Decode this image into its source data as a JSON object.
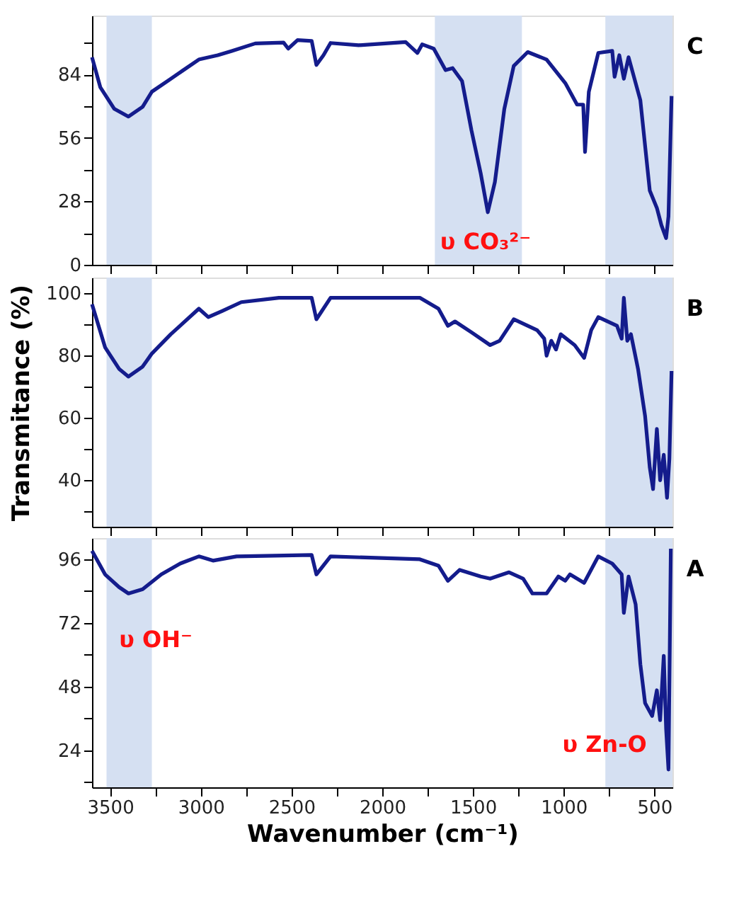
{
  "chart_data": [
    {
      "type": "line",
      "color": "#141c8c",
      "line_style": "solid",
      "marker": "none",
      "grid": false,
      "tick_labels": "y",
      "x": [
        3600,
        3554,
        3477,
        3399,
        3321,
        3270,
        3166,
        3011,
        2907,
        2829,
        2700,
        2544,
        2518,
        2467,
        2389,
        2363,
        2324,
        2285,
        2130,
        1871,
        1806,
        1780,
        1716,
        1651,
        1612,
        1560,
        1508,
        1457,
        1418,
        1379,
        1327,
        1275,
        1198,
        1094,
        991,
        926,
        892,
        882,
        861,
        809,
        732,
        719,
        693,
        668,
        642,
        577,
        525,
        486,
        461,
        435,
        422,
        405
      ],
      "values": [
        91.6,
        78.3,
        68.8,
        65.4,
        69.7,
        76.4,
        82.1,
        90.6,
        92.5,
        94.4,
        97.7,
        98.1,
        95.4,
        99.2,
        98.8,
        88.2,
        92.5,
        97.9,
        96.9,
        98.3,
        93.5,
        97.3,
        95.4,
        85.9,
        86.8,
        81.1,
        59.3,
        40.3,
        23.2,
        36.5,
        68.8,
        87.8,
        93.9,
        90.6,
        80.2,
        70.7,
        70.7,
        49.8,
        76.4,
        93.5,
        94.4,
        83.0,
        92.5,
        82.1,
        91.6,
        72.6,
        32.7,
        25.1,
        17.5,
        11.8,
        21.3,
        74.5
      ],
      "xlim": [
        3600,
        400
      ],
      "ylim": [
        0,
        110
      ],
      "xticks": [
        3500,
        {
          "value": 3250,
          "label": null
        },
        3000,
        {
          "value": 2750,
          "label": null
        },
        2500,
        {
          "value": 2250,
          "label": null
        },
        2000,
        {
          "value": 1750,
          "label": null
        },
        1500,
        {
          "value": 1250,
          "label": null
        },
        1000,
        {
          "value": 750,
          "label": null
        },
        500
      ],
      "yticks": [
        0,
        {
          "value": 14,
          "label": null
        },
        28,
        {
          "value": 42,
          "label": null
        },
        56,
        {
          "value": 70,
          "label": null
        },
        84,
        {
          "value": 98,
          "label": null
        }
      ],
      "bands": [
        {
          "axis": "x",
          "from": 3520,
          "to": 3270,
          "color": "#d5e0f2"
        },
        {
          "axis": "x",
          "from": 1710,
          "to": 1230,
          "color": "#d5e0f2"
        },
        {
          "axis": "x",
          "from": 770,
          "to": 400,
          "color": "#d5e0f2"
        }
      ],
      "annotations": [
        "υ CO₃²⁻",
        "C"
      ]
    },
    {
      "type": "line",
      "annotations": [
        "B"
      ],
      "ylabel": "Transmitance (%)",
      "color": "#141c8c",
      "line_style": "solid",
      "marker": "none",
      "grid": false,
      "tick_labels": "y",
      "x": [
        3600,
        3528,
        3451,
        3399,
        3321,
        3270,
        3166,
        3011,
        2959,
        2881,
        2777,
        2570,
        2389,
        2363,
        2285,
        1793,
        1690,
        1638,
        1599,
        1508,
        1405,
        1353,
        1275,
        1146,
        1107,
        1094,
        1068,
        1042,
        1016,
        939,
        887,
        848,
        809,
        706,
        680,
        668,
        649,
        629,
        590,
        551,
        525,
        507,
        486,
        468,
        448,
        430,
        417,
        405
      ],
      "values": [
        96.4,
        82.6,
        75.7,
        73.2,
        76.4,
        80.6,
        86.8,
        95.0,
        92.3,
        94.3,
        97.1,
        98.5,
        98.5,
        91.6,
        98.5,
        98.5,
        95.0,
        89.5,
        90.9,
        87.4,
        83.3,
        84.7,
        91.6,
        88.1,
        85.4,
        79.9,
        84.7,
        81.9,
        86.8,
        83.3,
        79.2,
        88.1,
        92.3,
        89.5,
        85.4,
        98.5,
        84.7,
        86.8,
        75.7,
        60.6,
        44.0,
        37.1,
        56.4,
        39.9,
        48.1,
        34.3,
        46.8,
        75.0
      ],
      "xlim": [
        3600,
        400
      ],
      "ylim": [
        25,
        105
      ],
      "xticks": [
        3500,
        {
          "value": 3250,
          "label": null
        },
        3000,
        {
          "value": 2750,
          "label": null
        },
        2500,
        {
          "value": 2250,
          "label": null
        },
        2000,
        {
          "value": 1750,
          "label": null
        },
        1500,
        {
          "value": 1250,
          "label": null
        },
        1000,
        {
          "value": 750,
          "label": null
        },
        500
      ],
      "yticks": [
        {
          "value": 30,
          "label": null
        },
        40,
        {
          "value": 50,
          "label": null
        },
        60,
        {
          "value": 70,
          "label": null
        },
        80,
        {
          "value": 90,
          "label": null
        },
        100
      ],
      "bands": [
        {
          "axis": "x",
          "from": 3520,
          "to": 3270,
          "color": "#d5e0f2"
        },
        {
          "axis": "x",
          "from": 770,
          "to": 400,
          "color": "#d5e0f2"
        }
      ]
    },
    {
      "type": "line",
      "xlabel": "Wavenumber (cm⁻¹)",
      "color": "#141c8c",
      "line_style": "solid",
      "marker": "none",
      "grid": false,
      "x": [
        3600,
        3528,
        3451,
        3399,
        3321,
        3218,
        3114,
        3011,
        2933,
        2803,
        2389,
        2363,
        2285,
        1793,
        1690,
        1638,
        1573,
        1457,
        1405,
        1301,
        1223,
        1172,
        1094,
        1029,
        991,
        965,
        887,
        809,
        732,
        680,
        668,
        642,
        603,
        577,
        551,
        512,
        486,
        468,
        448,
        435,
        422,
        409
      ],
      "values": [
        99.2,
        90.3,
        85.5,
        83.1,
        84.7,
        90.3,
        94.4,
        97.1,
        95.5,
        97.1,
        97.6,
        90.3,
        97.1,
        96.0,
        93.6,
        87.9,
        92.0,
        89.5,
        88.7,
        91.1,
        88.7,
        83.1,
        83.1,
        89.5,
        87.9,
        90.3,
        87.1,
        97.1,
        94.4,
        90.3,
        75.8,
        89.5,
        79.0,
        56.4,
        41.8,
        36.9,
        46.6,
        35.3,
        59.6,
        32.1,
        16.7,
        100.0
      ],
      "xlim": [
        3600,
        400
      ],
      "ylim": [
        10,
        104
      ],
      "xticks": [
        3500,
        {
          "value": 3250,
          "label": null
        },
        3000,
        {
          "value": 2750,
          "label": null
        },
        2500,
        {
          "value": 2250,
          "label": null
        },
        2000,
        {
          "value": 1750,
          "label": null
        },
        1500,
        {
          "value": 1250,
          "label": null
        },
        1000,
        {
          "value": 750,
          "label": null
        },
        500
      ],
      "yticks": [
        {
          "value": 12,
          "label": null
        },
        24,
        {
          "value": 36,
          "label": null
        },
        48,
        {
          "value": 60,
          "label": null
        },
        72,
        {
          "value": 84,
          "label": null
        },
        96
      ],
      "bands": [
        {
          "axis": "x",
          "from": 3520,
          "to": 3270,
          "color": "#d5e0f2"
        },
        {
          "axis": "x",
          "from": 770,
          "to": 400,
          "color": "#d5e0f2"
        }
      ],
      "annotations": [
        "υ OH⁻",
        "υ Zn-O",
        "A"
      ]
    }
  ]
}
